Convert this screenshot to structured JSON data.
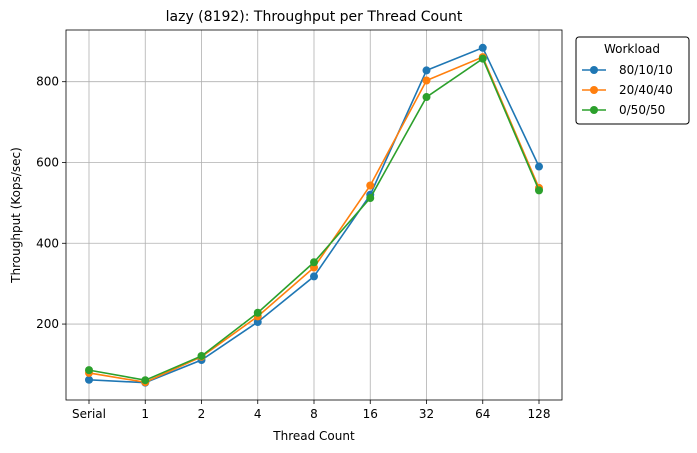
{
  "chart_data": {
    "type": "line",
    "title": "lazy (8192): Throughput per Thread Count",
    "xlabel": "Thread Count",
    "ylabel": "Throughput (Kops/sec)",
    "categories": [
      "Serial",
      "1",
      "2",
      "4",
      "8",
      "16",
      "32",
      "64",
      "128"
    ],
    "y_ticks": [
      "200",
      "400",
      "600",
      "800"
    ],
    "ylim": [
      12,
      928
    ],
    "grid": true,
    "legend": {
      "title": "Workload",
      "placement": "outside-top-right"
    },
    "series": [
      {
        "name": "80/10/10",
        "color": "#1f77b4",
        "values": [
          62,
          55,
          111,
          205,
          318,
          520,
          828,
          884,
          590
        ]
      },
      {
        "name": "20/40/40",
        "color": "#ff7f0e",
        "values": [
          79,
          56,
          119,
          219,
          340,
          543,
          803,
          861,
          537
        ]
      },
      {
        "name": "0/50/50",
        "color": "#2ca02c",
        "values": [
          86,
          61,
          121,
          228,
          353,
          512,
          762,
          857,
          531
        ]
      }
    ]
  }
}
